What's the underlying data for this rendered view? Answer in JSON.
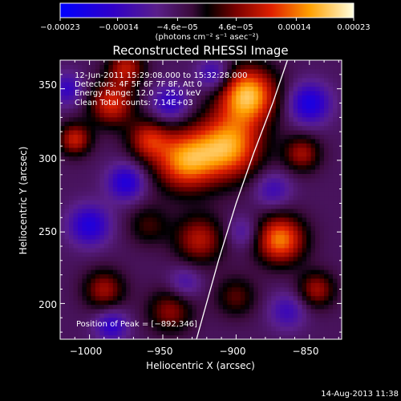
{
  "chart_data": {
    "type": "heatmap",
    "title": "Reconstructed RHESSI Image",
    "xlabel": "Heliocentric X (arcsec)",
    "ylabel": "Heliocentric Y (arcsec)",
    "xlim": [
      -1020,
      -828
    ],
    "ylim": [
      175,
      370
    ],
    "x_ticks": [
      -1000,
      -950,
      -900,
      -850
    ],
    "x_tick_labels": [
      "−1000",
      "−950",
      "−900",
      "−850"
    ],
    "y_ticks": [
      200,
      250,
      300,
      350
    ],
    "y_tick_labels": [
      "200",
      "250",
      "300",
      "350"
    ],
    "colorbar": {
      "range": [
        -0.00023,
        0.00023
      ],
      "ticks": [
        -0.00023,
        -0.00014,
        -4.6e-05,
        4.6e-05,
        0.00014,
        0.00023
      ],
      "tick_labels": [
        "−0.00023",
        "−0.00014",
        "−4.6e−05",
        "4.6e−05",
        "0.00014",
        "0.00023"
      ],
      "unit_label": "(photons cm⁻² s⁻¹ asec⁻²)"
    },
    "info_lines": [
      "12-Jun-2011 15:29:08.000 to 15:32:28.000",
      "Detectors: 4F 5F 6F 7F 8F, Att 0",
      "Energy Range: 12.0 − 25.0 keV",
      "Clean    Total counts: 7.14E+03"
    ],
    "peak_label": "Position of Peak = [−892,346]",
    "peak": [
      -892,
      346
    ],
    "limb_curve": [
      [
        -927,
        175
      ],
      [
        -912,
        230
      ],
      [
        -900,
        270
      ],
      [
        -888,
        305
      ],
      [
        -875,
        340
      ],
      [
        -865,
        370
      ]
    ],
    "sources": [
      {
        "x": -892,
        "y": 346,
        "amp": 1.0,
        "s": 14
      },
      {
        "x": -905,
        "y": 310,
        "amp": 0.9,
        "s": 16
      },
      {
        "x": -935,
        "y": 300,
        "amp": 0.85,
        "s": 15
      },
      {
        "x": -960,
        "y": 315,
        "amp": 0.55,
        "s": 10
      },
      {
        "x": -985,
        "y": 340,
        "amp": 0.65,
        "s": 11
      },
      {
        "x": -975,
        "y": 365,
        "amp": 0.55,
        "s": 9
      },
      {
        "x": -1010,
        "y": 315,
        "amp": 0.6,
        "s": 8
      },
      {
        "x": -870,
        "y": 245,
        "amp": 0.85,
        "s": 12
      },
      {
        "x": -925,
        "y": 245,
        "amp": 0.55,
        "s": 12
      },
      {
        "x": -855,
        "y": 305,
        "amp": 0.5,
        "s": 9
      },
      {
        "x": -845,
        "y": 210,
        "amp": 0.5,
        "s": 9
      },
      {
        "x": -990,
        "y": 210,
        "amp": 0.5,
        "s": 10
      },
      {
        "x": -945,
        "y": 195,
        "amp": 0.45,
        "s": 11
      },
      {
        "x": -900,
        "y": 205,
        "amp": 0.35,
        "s": 10
      },
      {
        "x": -960,
        "y": 255,
        "amp": 0.3,
        "s": 10
      },
      {
        "x": -1000,
        "y": 255,
        "amp": -0.55,
        "s": 10
      },
      {
        "x": -975,
        "y": 285,
        "amp": -0.55,
        "s": 9
      },
      {
        "x": -945,
        "y": 340,
        "amp": -0.45,
        "s": 9
      },
      {
        "x": -915,
        "y": 360,
        "amp": -0.45,
        "s": 8
      },
      {
        "x": -850,
        "y": 340,
        "amp": -0.6,
        "s": 10
      },
      {
        "x": -875,
        "y": 280,
        "amp": -0.35,
        "s": 9
      },
      {
        "x": -895,
        "y": 250,
        "amp": -0.3,
        "s": 8
      },
      {
        "x": -985,
        "y": 185,
        "amp": -0.45,
        "s": 8
      },
      {
        "x": -935,
        "y": 215,
        "amp": -0.3,
        "s": 8
      },
      {
        "x": -865,
        "y": 195,
        "amp": -0.35,
        "s": 9
      },
      {
        "x": -1015,
        "y": 350,
        "amp": -0.4,
        "s": 8
      }
    ]
  },
  "footer": {
    "timestamp": "14-Aug-2013 11:38"
  }
}
